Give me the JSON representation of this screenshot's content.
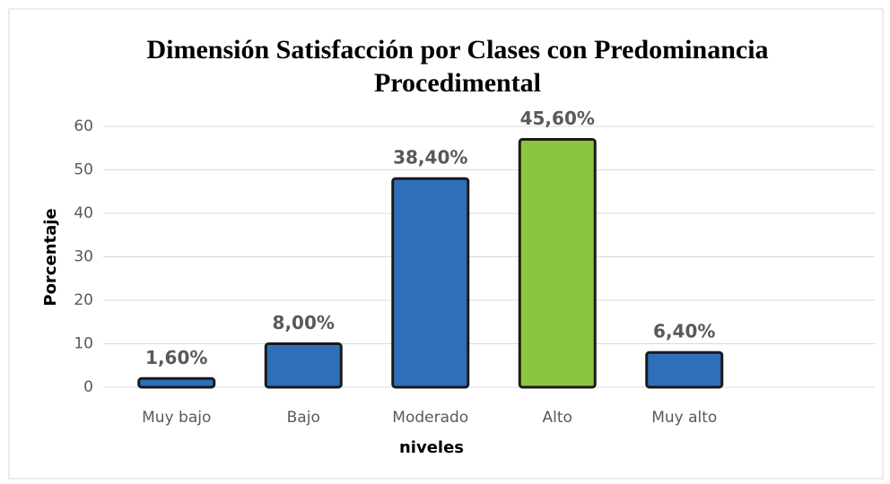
{
  "chart_data": {
    "type": "bar",
    "title": [
      "Dimensión Satisfacción por Clases con Predominancia",
      "Procedimental"
    ],
    "x_label": "niveles",
    "y_label": "Porcentaje",
    "categories": [
      "Muy bajo",
      "Bajo",
      "Moderado",
      "Alto",
      "Muy alto"
    ],
    "values": [
      2,
      10,
      48,
      57,
      8
    ],
    "annotations": [
      "1,60%",
      "8,00%",
      "38,40%",
      "45,60%",
      "6,40%"
    ],
    "colors": [
      "#2f6fba",
      "#2f6fba",
      "#2f6fba",
      "#8cc63e",
      "#2f6fba"
    ],
    "ylim": [
      0,
      60
    ],
    "yticks": [
      0,
      10,
      20,
      30,
      40,
      50,
      60
    ],
    "grid": true
  }
}
